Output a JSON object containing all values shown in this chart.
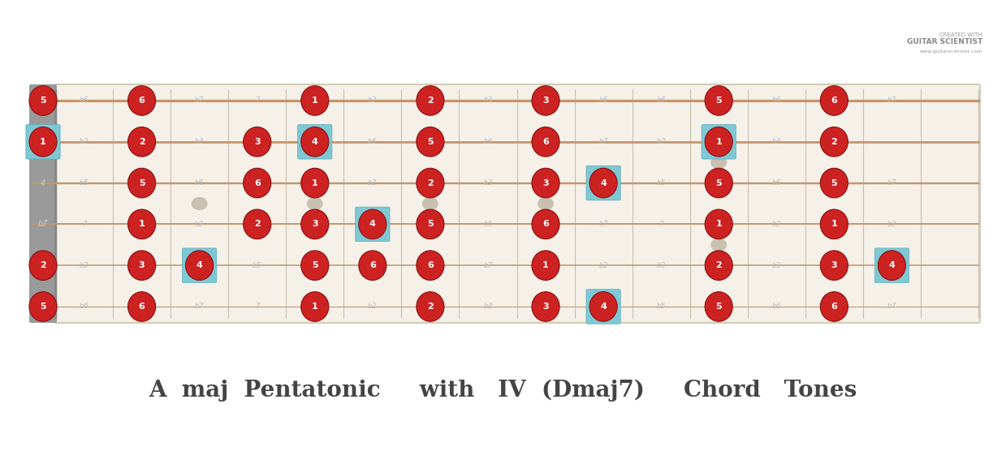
{
  "title": "A  maj  Pentatonic     with   IV  (Dmaj7)     Chord   Tones",
  "bg_color": "#FFFFFF",
  "fretboard_bg": "#F5F0E8",
  "nut_bg": "#9A9A9A",
  "string_color": "#C4956A",
  "fret_color": "#C8C0B0",
  "circle_color": "#CC2222",
  "circle_edge_color": "#881111",
  "circle_text_color": "#FFFFFF",
  "highlight_color": "#7EC8D4",
  "label_color": "#BBBBBB",
  "num_strings": 6,
  "num_frets": 16,
  "note_positions": [
    {
      "fret": 0,
      "string": 0,
      "label": "5",
      "highlight": false
    },
    {
      "fret": 0,
      "string": 1,
      "label": "2",
      "highlight": false
    },
    {
      "fret": 0,
      "string": 4,
      "label": "1",
      "highlight": true
    },
    {
      "fret": 0,
      "string": 5,
      "label": "5",
      "highlight": false
    },
    {
      "fret": 2,
      "string": 0,
      "label": "6",
      "highlight": false
    },
    {
      "fret": 2,
      "string": 1,
      "label": "3",
      "highlight": false
    },
    {
      "fret": 2,
      "string": 2,
      "label": "1",
      "highlight": false
    },
    {
      "fret": 2,
      "string": 3,
      "label": "5",
      "highlight": false
    },
    {
      "fret": 2,
      "string": 4,
      "label": "2",
      "highlight": false
    },
    {
      "fret": 2,
      "string": 5,
      "label": "6",
      "highlight": false
    },
    {
      "fret": 3,
      "string": 1,
      "label": "4",
      "highlight": true
    },
    {
      "fret": 4,
      "string": 2,
      "label": "2",
      "highlight": false
    },
    {
      "fret": 4,
      "string": 3,
      "label": "6",
      "highlight": false
    },
    {
      "fret": 4,
      "string": 4,
      "label": "3",
      "highlight": false
    },
    {
      "fret": 5,
      "string": 0,
      "label": "1",
      "highlight": false
    },
    {
      "fret": 5,
      "string": 1,
      "label": "5",
      "highlight": false
    },
    {
      "fret": 5,
      "string": 2,
      "label": "3",
      "highlight": false
    },
    {
      "fret": 5,
      "string": 3,
      "label": "1",
      "highlight": false
    },
    {
      "fret": 5,
      "string": 4,
      "label": "4",
      "highlight": true
    },
    {
      "fret": 5,
      "string": 5,
      "label": "1",
      "highlight": false
    },
    {
      "fret": 6,
      "string": 1,
      "label": "6",
      "highlight": false
    },
    {
      "fret": 6,
      "string": 2,
      "label": "4",
      "highlight": true
    },
    {
      "fret": 7,
      "string": 0,
      "label": "2",
      "highlight": false
    },
    {
      "fret": 7,
      "string": 1,
      "label": "6",
      "highlight": false
    },
    {
      "fret": 7,
      "string": 2,
      "label": "5",
      "highlight": false
    },
    {
      "fret": 7,
      "string": 3,
      "label": "2",
      "highlight": false
    },
    {
      "fret": 7,
      "string": 4,
      "label": "5",
      "highlight": false
    },
    {
      "fret": 7,
      "string": 5,
      "label": "2",
      "highlight": false
    },
    {
      "fret": 9,
      "string": 0,
      "label": "3",
      "highlight": false
    },
    {
      "fret": 9,
      "string": 1,
      "label": "1",
      "highlight": false
    },
    {
      "fret": 9,
      "string": 2,
      "label": "6",
      "highlight": false
    },
    {
      "fret": 9,
      "string": 3,
      "label": "3",
      "highlight": false
    },
    {
      "fret": 9,
      "string": 4,
      "label": "6",
      "highlight": false
    },
    {
      "fret": 9,
      "string": 5,
      "label": "3",
      "highlight": false
    },
    {
      "fret": 10,
      "string": 0,
      "label": "4",
      "highlight": true
    },
    {
      "fret": 10,
      "string": 3,
      "label": "4",
      "highlight": true
    },
    {
      "fret": 12,
      "string": 0,
      "label": "5",
      "highlight": false
    },
    {
      "fret": 12,
      "string": 1,
      "label": "2",
      "highlight": false
    },
    {
      "fret": 12,
      "string": 2,
      "label": "1",
      "highlight": false
    },
    {
      "fret": 12,
      "string": 3,
      "label": "5",
      "highlight": false
    },
    {
      "fret": 12,
      "string": 4,
      "label": "1",
      "highlight": true
    },
    {
      "fret": 12,
      "string": 5,
      "label": "5",
      "highlight": false
    },
    {
      "fret": 14,
      "string": 0,
      "label": "6",
      "highlight": false
    },
    {
      "fret": 14,
      "string": 1,
      "label": "3",
      "highlight": false
    },
    {
      "fret": 14,
      "string": 2,
      "label": "1",
      "highlight": false
    },
    {
      "fret": 14,
      "string": 3,
      "label": "5",
      "highlight": false
    },
    {
      "fret": 14,
      "string": 4,
      "label": "2",
      "highlight": false
    },
    {
      "fret": 14,
      "string": 5,
      "label": "6",
      "highlight": false
    },
    {
      "fret": 15,
      "string": 1,
      "label": "4",
      "highlight": true
    }
  ],
  "interval_labels": [
    {
      "fret": 1,
      "string": 0,
      "label": "b6"
    },
    {
      "fret": 1,
      "string": 1,
      "label": "b3"
    },
    {
      "fret": 1,
      "string": 2,
      "label": "7"
    },
    {
      "fret": 1,
      "string": 3,
      "label": "b5"
    },
    {
      "fret": 1,
      "string": 4,
      "label": "b2"
    },
    {
      "fret": 1,
      "string": 5,
      "label": "b6"
    },
    {
      "fret": 3,
      "string": 0,
      "label": "b7"
    },
    {
      "fret": 3,
      "string": 2,
      "label": "b2"
    },
    {
      "fret": 3,
      "string": 3,
      "label": "b6"
    },
    {
      "fret": 3,
      "string": 4,
      "label": "b3"
    },
    {
      "fret": 3,
      "string": 5,
      "label": "b7"
    },
    {
      "fret": 4,
      "string": 0,
      "label": "7"
    },
    {
      "fret": 4,
      "string": 1,
      "label": "b5"
    },
    {
      "fret": 4,
      "string": 2,
      "label": "b3"
    },
    {
      "fret": 4,
      "string": 3,
      "label": "b7"
    },
    {
      "fret": 4,
      "string": 4,
      "label": "3"
    },
    {
      "fret": 4,
      "string": 5,
      "label": "7"
    },
    {
      "fret": 6,
      "string": 0,
      "label": "b2"
    },
    {
      "fret": 6,
      "string": 2,
      "label": "b5"
    },
    {
      "fret": 6,
      "string": 3,
      "label": "b2"
    },
    {
      "fret": 6,
      "string": 4,
      "label": "b6"
    },
    {
      "fret": 6,
      "string": 5,
      "label": "b2"
    },
    {
      "fret": 8,
      "string": 0,
      "label": "b3"
    },
    {
      "fret": 8,
      "string": 1,
      "label": "b7"
    },
    {
      "fret": 8,
      "string": 2,
      "label": "b6"
    },
    {
      "fret": 8,
      "string": 3,
      "label": "b3"
    },
    {
      "fret": 8,
      "string": 4,
      "label": "b6"
    },
    {
      "fret": 8,
      "string": 5,
      "label": "b3"
    },
    {
      "fret": 10,
      "string": 1,
      "label": "b2"
    },
    {
      "fret": 10,
      "string": 2,
      "label": "b7"
    },
    {
      "fret": 10,
      "string": 4,
      "label": "b7"
    },
    {
      "fret": 10,
      "string": 5,
      "label": "b5"
    },
    {
      "fret": 11,
      "string": 0,
      "label": "b5"
    },
    {
      "fret": 11,
      "string": 1,
      "label": "b3"
    },
    {
      "fret": 11,
      "string": 2,
      "label": "7"
    },
    {
      "fret": 11,
      "string": 3,
      "label": "b5"
    },
    {
      "fret": 11,
      "string": 4,
      "label": "b2"
    },
    {
      "fret": 11,
      "string": 5,
      "label": "b6"
    },
    {
      "fret": 13,
      "string": 0,
      "label": "b6"
    },
    {
      "fret": 13,
      "string": 1,
      "label": "b3"
    },
    {
      "fret": 13,
      "string": 2,
      "label": "b2"
    },
    {
      "fret": 13,
      "string": 3,
      "label": "b6"
    },
    {
      "fret": 13,
      "string": 4,
      "label": "b3"
    },
    {
      "fret": 13,
      "string": 5,
      "label": "b6"
    },
    {
      "fret": 15,
      "string": 0,
      "label": "b7"
    },
    {
      "fret": 15,
      "string": 2,
      "label": "b2"
    },
    {
      "fret": 15,
      "string": 3,
      "label": "b7"
    },
    {
      "fret": 15,
      "string": 5,
      "label": "b7"
    }
  ],
  "nut_labels": [
    {
      "string": 2,
      "label": "b7"
    },
    {
      "string": 3,
      "label": "4"
    }
  ]
}
